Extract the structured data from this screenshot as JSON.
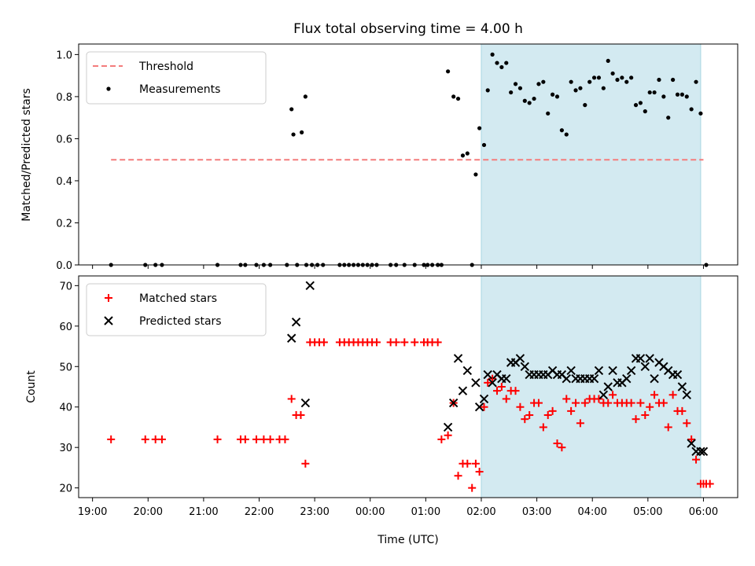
{
  "chart_data": [
    {
      "type": "scatter",
      "title": "Flux total observing time = 4.00 h",
      "xlabel": "",
      "ylabel": "Matched/Predicted stars",
      "xlim": [
        "18:45",
        "06:37"
      ],
      "ylim": [
        0.0,
        1.05
      ],
      "yticks": [
        "0.0",
        "0.2",
        "0.4",
        "0.6",
        "0.8",
        "1.0"
      ],
      "shaded_span": [
        "02:00",
        "05:57"
      ],
      "shaded_color": "#d3eaf1",
      "legend_position": "top-left",
      "series": [
        {
          "name": "Threshold",
          "style": "dashed-line",
          "color": "#f47c7c",
          "x": [
            "19:20",
            "06:00"
          ],
          "y": [
            0.5,
            0.5
          ]
        },
        {
          "name": "Measurements",
          "style": "dot",
          "color": "#000000",
          "x": [
            "19:20",
            "19:57",
            "20:08",
            "20:15",
            "21:15",
            "21:40",
            "21:45",
            "21:57",
            "22:05",
            "22:12",
            "22:30",
            "22:35",
            "22:37",
            "22:41",
            "22:46",
            "22:50",
            "22:51",
            "22:57",
            "23:03",
            "23:09",
            "23:27",
            "23:32",
            "23:37",
            "23:42",
            "23:47",
            "23:52",
            "23:57",
            "00:02",
            "00:07",
            "00:22",
            "00:28",
            "00:37",
            "00:48",
            "00:58",
            "01:02",
            "01:07",
            "01:13",
            "01:17",
            "01:24",
            "01:30",
            "01:35",
            "01:40",
            "01:45",
            "01:50",
            "01:54",
            "01:58",
            "02:03",
            "02:07",
            "02:12",
            "02:17",
            "02:22",
            "02:27",
            "02:32",
            "02:37",
            "02:42",
            "02:47",
            "02:52",
            "02:57",
            "03:02",
            "03:07",
            "03:12",
            "03:17",
            "03:22",
            "03:27",
            "03:32",
            "03:37",
            "03:42",
            "03:47",
            "03:52",
            "03:57",
            "04:02",
            "04:07",
            "04:12",
            "04:17",
            "04:22",
            "04:27",
            "04:32",
            "04:37",
            "04:42",
            "04:47",
            "04:52",
            "04:57",
            "05:02",
            "05:07",
            "05:12",
            "05:17",
            "05:22",
            "05:27",
            "05:32",
            "05:37",
            "05:42",
            "05:47",
            "05:52",
            "05:57",
            "06:03"
          ],
          "y": [
            0.0,
            0.0,
            0.0,
            0.0,
            0.0,
            0.0,
            0.0,
            0.0,
            0.0,
            0.0,
            0.0,
            0.74,
            0.62,
            0.0,
            0.63,
            0.8,
            0.0,
            0.0,
            0.0,
            0.0,
            0.0,
            0.0,
            0.0,
            0.0,
            0.0,
            0.0,
            0.0,
            0.0,
            0.0,
            0.0,
            0.0,
            0.0,
            0.0,
            0.0,
            0.0,
            0.0,
            0.0,
            0.0,
            0.92,
            0.8,
            0.79,
            0.52,
            0.53,
            0.0,
            0.43,
            0.65,
            0.57,
            0.83,
            1.0,
            0.96,
            0.94,
            0.96,
            0.82,
            0.86,
            0.84,
            0.78,
            0.77,
            0.79,
            0.86,
            0.87,
            0.72,
            0.81,
            0.8,
            0.64,
            0.62,
            0.87,
            0.83,
            0.84,
            0.76,
            0.87,
            0.89,
            0.89,
            0.84,
            0.97,
            0.91,
            0.88,
            0.89,
            0.87,
            0.89,
            0.76,
            0.77,
            0.73,
            0.82,
            0.82,
            0.88,
            0.8,
            0.7,
            0.88,
            0.81,
            0.81,
            0.8,
            0.74,
            0.87,
            0.72,
            0.0
          ]
        }
      ]
    },
    {
      "type": "scatter",
      "title": "",
      "xlabel": "Time (UTC)",
      "ylabel": "Count",
      "xlim": [
        "18:45",
        "06:37"
      ],
      "ylim": [
        17.6,
        72.4
      ],
      "yticks": [
        "20",
        "30",
        "40",
        "50",
        "60",
        "70"
      ],
      "xticks": [
        "19:00",
        "20:00",
        "21:00",
        "22:00",
        "23:00",
        "00:00",
        "01:00",
        "02:00",
        "03:00",
        "04:00",
        "05:00",
        "06:00"
      ],
      "shaded_span": [
        "02:00",
        "05:57"
      ],
      "shaded_color": "#d3eaf1",
      "legend_position": "top-left",
      "series": [
        {
          "name": "Matched stars",
          "style": "plus",
          "color": "#ff0000",
          "x": [
            "19:20",
            "19:57",
            "20:08",
            "20:15",
            "21:15",
            "21:40",
            "21:45",
            "21:57",
            "22:05",
            "22:12",
            "22:22",
            "22:28",
            "22:35",
            "22:40",
            "22:45",
            "22:50",
            "22:55",
            "23:00",
            "23:05",
            "23:10",
            "23:27",
            "23:32",
            "23:37",
            "23:42",
            "23:47",
            "23:52",
            "23:57",
            "00:02",
            "00:07",
            "00:22",
            "00:28",
            "00:37",
            "00:48",
            "00:58",
            "01:02",
            "01:07",
            "01:13",
            "01:17",
            "01:24",
            "01:30",
            "01:35",
            "01:40",
            "01:45",
            "01:50",
            "01:54",
            "01:58",
            "02:03",
            "02:07",
            "02:12",
            "02:17",
            "02:22",
            "02:27",
            "02:32",
            "02:37",
            "02:42",
            "02:47",
            "02:52",
            "02:57",
            "03:02",
            "03:07",
            "03:12",
            "03:17",
            "03:22",
            "03:27",
            "03:32",
            "03:37",
            "03:42",
            "03:47",
            "03:52",
            "03:57",
            "04:02",
            "04:07",
            "04:12",
            "04:17",
            "04:22",
            "04:27",
            "04:32",
            "04:37",
            "04:42",
            "04:47",
            "04:52",
            "04:57",
            "05:02",
            "05:07",
            "05:12",
            "05:17",
            "05:22",
            "05:27",
            "05:32",
            "05:37",
            "05:42",
            "05:47",
            "05:52",
            "05:57",
            "06:00",
            "06:03",
            "06:07"
          ],
          "y": [
            32,
            32,
            32,
            32,
            32,
            32,
            32,
            32,
            32,
            32,
            32,
            32,
            42,
            38,
            38,
            26,
            56,
            56,
            56,
            56,
            56,
            56,
            56,
            56,
            56,
            56,
            56,
            56,
            56,
            56,
            56,
            56,
            56,
            56,
            56,
            56,
            56,
            32,
            33,
            41,
            23,
            26,
            26,
            20,
            26,
            24,
            40,
            46,
            47,
            44,
            45,
            42,
            44,
            44,
            40,
            37,
            38,
            41,
            41,
            35,
            38,
            39,
            31,
            30,
            42,
            39,
            41,
            36,
            41,
            42,
            42,
            42,
            41,
            41,
            43,
            41,
            41,
            41,
            41,
            37,
            41,
            38,
            40,
            43,
            41,
            41,
            35,
            43,
            39,
            39,
            36,
            32,
            27,
            21,
            21,
            21,
            21
          ],
          "y_note": ""
        },
        {
          "name": "Predicted stars",
          "style": "cross",
          "color": "#000000",
          "x": [
            "22:35",
            "22:40",
            "22:50",
            "22:55",
            "01:24",
            "01:30",
            "01:35",
            "01:40",
            "01:45",
            "01:54",
            "01:58",
            "02:03",
            "02:07",
            "02:12",
            "02:17",
            "02:22",
            "02:27",
            "02:32",
            "02:37",
            "02:42",
            "02:47",
            "02:52",
            "02:57",
            "03:02",
            "03:07",
            "03:12",
            "03:17",
            "03:22",
            "03:27",
            "03:32",
            "03:37",
            "03:42",
            "03:47",
            "03:52",
            "03:57",
            "04:02",
            "04:07",
            "04:12",
            "04:17",
            "04:22",
            "04:27",
            "04:32",
            "04:37",
            "04:42",
            "04:47",
            "04:52",
            "04:57",
            "05:02",
            "05:07",
            "05:12",
            "05:17",
            "05:22",
            "05:27",
            "05:32",
            "05:37",
            "05:42",
            "05:47",
            "05:52",
            "05:57",
            "06:00"
          ],
          "y": [
            57,
            61,
            41,
            70,
            35,
            41,
            52,
            44,
            49,
            46,
            40,
            42,
            48,
            46,
            48,
            47,
            47,
            51,
            51,
            52,
            50,
            48,
            48,
            48,
            48,
            48,
            49,
            48,
            48,
            47,
            49,
            47,
            47,
            47,
            47,
            47,
            49,
            43,
            45,
            49,
            46,
            46,
            47,
            49,
            52,
            52,
            50,
            52,
            47,
            51,
            50,
            49,
            48,
            48,
            45,
            43,
            31,
            29,
            29,
            29
          ],
          "y_note": ""
        }
      ]
    }
  ]
}
